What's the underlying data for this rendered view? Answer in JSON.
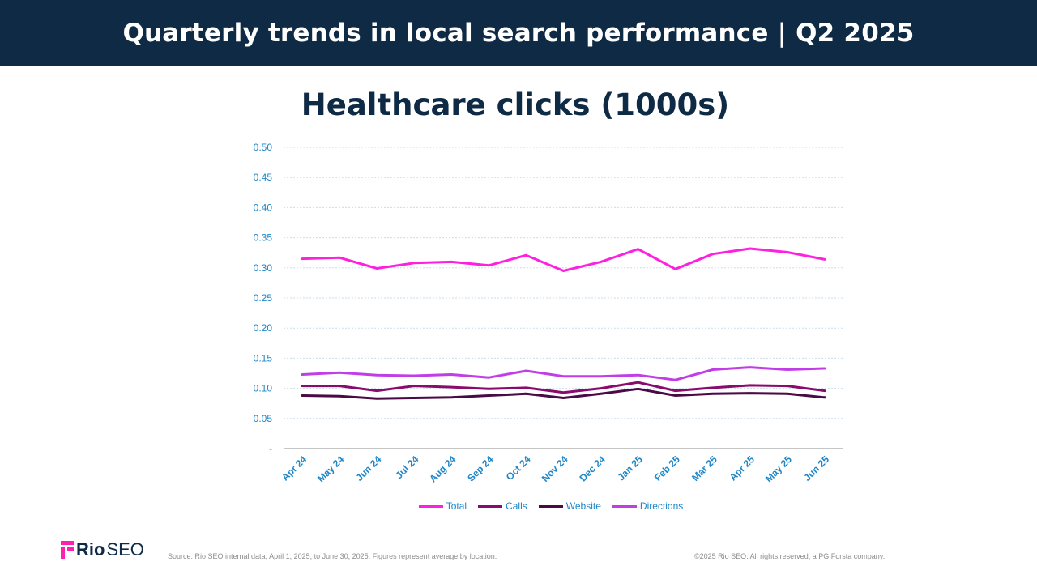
{
  "header": {
    "title": "Quarterly trends in local search performance | Q2 2025"
  },
  "footer": {
    "logo_bold": "Rio",
    "logo_light": "SEO",
    "source": "Source: Rio SEO internal data, April 1, 2025, to June 30, 2025. Figures represent average by location.",
    "copyright": "©2025 Rio SEO. All rights reserved, a PG Forsta company."
  },
  "colors": {
    "header_bg": "#0e2a44",
    "axis_text": "#1f86c7",
    "gridline": "#c9dde9"
  },
  "chart_data": {
    "type": "line",
    "title": "Healthcare clicks (1000s)",
    "xlabel": "",
    "ylabel": "",
    "ylim": [
      0,
      0.5
    ],
    "yticks": [
      0,
      0.05,
      0.1,
      0.15,
      0.2,
      0.25,
      0.3,
      0.35,
      0.4,
      0.45,
      0.5
    ],
    "ytick_labels": [
      "-",
      "0.05",
      "0.10",
      "0.15",
      "0.20",
      "0.25",
      "0.30",
      "0.35",
      "0.40",
      "0.45",
      "0.50"
    ],
    "grid": true,
    "legend_position": "bottom",
    "categories": [
      "Apr 24",
      "May 24",
      "Jun 24",
      "Jul 24",
      "Aug 24",
      "Sep 24",
      "Oct 24",
      "Nov 24",
      "Dec 24",
      "Jan 25",
      "Feb 25",
      "Mar 25",
      "Apr 25",
      "May 25",
      "Jun 25"
    ],
    "series": [
      {
        "name": "Total",
        "color": "#ff1fe0",
        "values": [
          0.315,
          0.317,
          0.299,
          0.308,
          0.31,
          0.304,
          0.321,
          0.295,
          0.31,
          0.331,
          0.298,
          0.323,
          0.332,
          0.326,
          0.314
        ]
      },
      {
        "name": "Calls",
        "color": "#8b0a6e",
        "values": [
          0.104,
          0.104,
          0.096,
          0.104,
          0.102,
          0.099,
          0.101,
          0.093,
          0.1,
          0.11,
          0.096,
          0.101,
          0.105,
          0.104,
          0.096
        ]
      },
      {
        "name": "Website",
        "color": "#4a0a45",
        "values": [
          0.088,
          0.087,
          0.083,
          0.084,
          0.085,
          0.088,
          0.091,
          0.084,
          0.091,
          0.099,
          0.088,
          0.091,
          0.092,
          0.091,
          0.085
        ]
      },
      {
        "name": "Directions",
        "color": "#c13ee6",
        "values": [
          0.123,
          0.126,
          0.122,
          0.121,
          0.123,
          0.118,
          0.129,
          0.12,
          0.12,
          0.122,
          0.114,
          0.131,
          0.135,
          0.131,
          0.133
        ]
      }
    ]
  }
}
